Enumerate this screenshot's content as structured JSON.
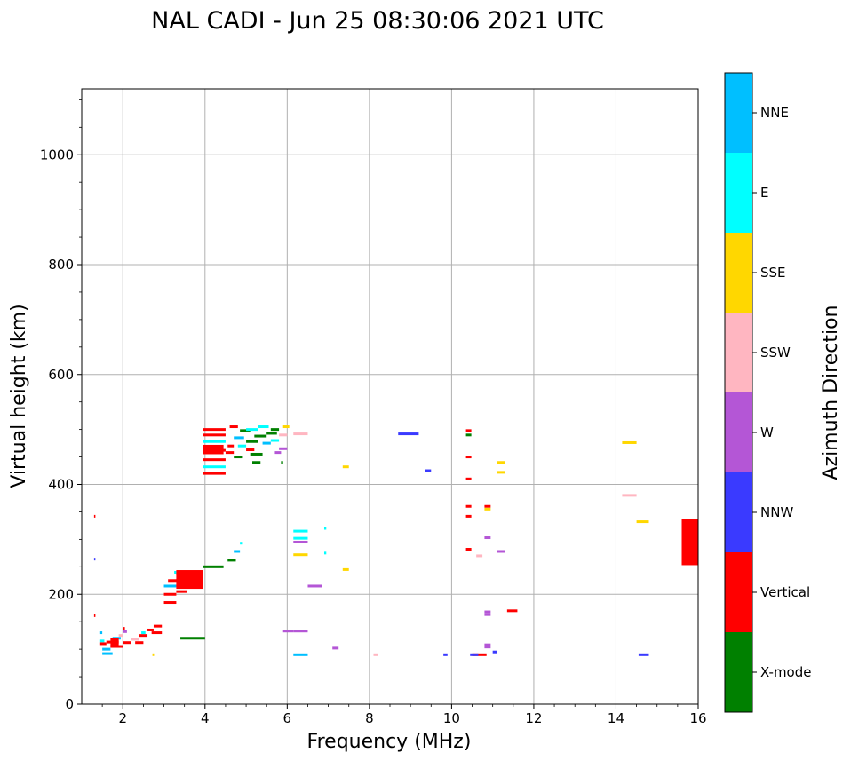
{
  "chart_data": {
    "type": "scatter",
    "title": "NAL CADI - Jun 25 08:30:06 2021 UTC",
    "xlabel": "Frequency (MHz)",
    "ylabel": "Virtual height (km)",
    "xlim": [
      1,
      16
    ],
    "ylim": [
      0,
      1120
    ],
    "grid": true,
    "x_ticks": [
      2,
      4,
      6,
      8,
      10,
      12,
      14,
      16
    ],
    "x_tick_labels": [
      "2",
      "4",
      "6",
      "8",
      "10",
      "12",
      "14",
      "16"
    ],
    "y_ticks": [
      0,
      200,
      400,
      600,
      800,
      1000
    ],
    "y_tick_labels": [
      "0",
      "200",
      "400",
      "600",
      "800",
      "1000"
    ],
    "colorbar": {
      "label": "Azimuth Direction",
      "categories": [
        "X-mode",
        "Vertical",
        "NNW",
        "W",
        "SSW",
        "SSE",
        "E",
        "NNE"
      ],
      "colors": [
        "#008000",
        "#ff0000",
        "#3a3aff",
        "#b456d6",
        "#ffb6c1",
        "#ffd700",
        "#00ffff",
        "#00bfff"
      ]
    },
    "points": [
      {
        "f0": 1.3,
        "f1": 1.33,
        "h": 342,
        "c": "Vertical"
      },
      {
        "f0": 1.3,
        "f1": 1.33,
        "h": 264,
        "c": "NNW"
      },
      {
        "f0": 1.3,
        "f1": 1.33,
        "h": 161,
        "c": "Vertical"
      },
      {
        "f0": 1.45,
        "f1": 1.5,
        "h": 130,
        "c": "NNE"
      },
      {
        "f0": 1.45,
        "f1": 1.55,
        "h": 115,
        "c": "E"
      },
      {
        "f0": 1.45,
        "f1": 1.6,
        "h": 110,
        "c": "Vertical"
      },
      {
        "f0": 1.5,
        "f1": 1.7,
        "h": 100,
        "c": "NNE"
      },
      {
        "f0": 1.5,
        "f1": 1.75,
        "h": 92,
        "c": "NNE"
      },
      {
        "f0": 1.6,
        "f1": 1.9,
        "h": 113,
        "c": "Vertical"
      },
      {
        "f0": 1.7,
        "f1": 2.0,
        "h": 105,
        "c": "Vertical"
      },
      {
        "f0": 1.75,
        "f1": 1.95,
        "h": 120,
        "c": "NNE"
      },
      {
        "f0": 1.9,
        "f1": 2.0,
        "h": 125,
        "c": "SSW"
      },
      {
        "f0": 2.0,
        "f1": 2.2,
        "h": 112,
        "c": "Vertical"
      },
      {
        "f0": 2.0,
        "f1": 2.1,
        "h": 132,
        "c": "W"
      },
      {
        "f0": 2.0,
        "f1": 2.05,
        "h": 138,
        "c": "Vertical"
      },
      {
        "f0": 2.2,
        "f1": 2.4,
        "h": 118,
        "c": "SSW"
      },
      {
        "f0": 2.3,
        "f1": 2.5,
        "h": 112,
        "c": "Vertical"
      },
      {
        "f0": 2.4,
        "f1": 2.6,
        "h": 125,
        "c": "Vertical"
      },
      {
        "f0": 2.45,
        "f1": 2.55,
        "h": 130,
        "c": "E"
      },
      {
        "f0": 2.6,
        "f1": 2.75,
        "h": 135,
        "c": "Vertical"
      },
      {
        "f0": 2.7,
        "f1": 2.95,
        "h": 130,
        "c": "Vertical"
      },
      {
        "f0": 2.75,
        "f1": 2.95,
        "h": 142,
        "c": "Vertical"
      },
      {
        "f0": 2.72,
        "f1": 2.76,
        "h": 90,
        "c": "SSE"
      },
      {
        "f0": 3.0,
        "f1": 3.3,
        "h": 185,
        "c": "Vertical"
      },
      {
        "f0": 3.0,
        "f1": 3.3,
        "h": 200,
        "c": "Vertical"
      },
      {
        "f0": 3.0,
        "f1": 3.3,
        "h": 215,
        "c": "NNE"
      },
      {
        "f0": 3.1,
        "f1": 3.4,
        "h": 225,
        "c": "Vertical"
      },
      {
        "f0": 3.3,
        "f1": 3.55,
        "h": 205,
        "c": "Vertical"
      },
      {
        "f0": 3.3,
        "f1": 3.9,
        "h": 215,
        "c": "Vertical"
      },
      {
        "f0": 3.3,
        "f1": 3.9,
        "h": 225,
        "c": "Vertical"
      },
      {
        "f0": 3.3,
        "f1": 3.9,
        "h": 238,
        "c": "Vertical"
      },
      {
        "f0": 3.25,
        "f1": 3.3,
        "h": 240,
        "c": "E"
      },
      {
        "f0": 3.4,
        "f1": 4.0,
        "h": 120,
        "c": "X-mode"
      },
      {
        "f0": 3.95,
        "f1": 4.45,
        "h": 250,
        "c": "X-mode"
      },
      {
        "f0": 4.55,
        "f1": 4.75,
        "h": 262,
        "c": "X-mode"
      },
      {
        "f0": 4.7,
        "f1": 4.85,
        "h": 278,
        "c": "NNE"
      },
      {
        "f0": 4.85,
        "f1": 4.9,
        "h": 293,
        "c": "E"
      },
      {
        "f0": 3.95,
        "f1": 4.5,
        "h": 420,
        "c": "Vertical"
      },
      {
        "f0": 3.95,
        "f1": 4.5,
        "h": 432,
        "c": "E"
      },
      {
        "f0": 3.95,
        "f1": 4.5,
        "h": 445,
        "c": "Vertical"
      },
      {
        "f0": 3.95,
        "f1": 4.5,
        "h": 462,
        "c": "Vertical"
      },
      {
        "f0": 3.95,
        "f1": 4.5,
        "h": 478,
        "c": "E"
      },
      {
        "f0": 3.95,
        "f1": 4.5,
        "h": 490,
        "c": "Vertical"
      },
      {
        "f0": 3.95,
        "f1": 4.5,
        "h": 500,
        "c": "Vertical"
      },
      {
        "f0": 4.5,
        "f1": 4.7,
        "h": 458,
        "c": "Vertical"
      },
      {
        "f0": 4.55,
        "f1": 4.7,
        "h": 470,
        "c": "Vertical"
      },
      {
        "f0": 4.6,
        "f1": 4.8,
        "h": 505,
        "c": "Vertical"
      },
      {
        "f0": 4.7,
        "f1": 4.9,
        "h": 450,
        "c": "X-mode"
      },
      {
        "f0": 4.7,
        "f1": 4.95,
        "h": 485,
        "c": "NNE"
      },
      {
        "f0": 4.8,
        "f1": 5.0,
        "h": 470,
        "c": "E"
      },
      {
        "f0": 4.85,
        "f1": 5.1,
        "h": 498,
        "c": "X-mode"
      },
      {
        "f0": 5.0,
        "f1": 5.3,
        "h": 478,
        "c": "X-mode"
      },
      {
        "f0": 5.0,
        "f1": 5.2,
        "h": 463,
        "c": "Vertical"
      },
      {
        "f0": 5.0,
        "f1": 5.3,
        "h": 500,
        "c": "E"
      },
      {
        "f0": 5.1,
        "f1": 5.4,
        "h": 455,
        "c": "X-mode"
      },
      {
        "f0": 5.15,
        "f1": 5.35,
        "h": 440,
        "c": "X-mode"
      },
      {
        "f0": 5.2,
        "f1": 5.5,
        "h": 488,
        "c": "X-mode"
      },
      {
        "f0": 5.3,
        "f1": 5.55,
        "h": 505,
        "c": "E"
      },
      {
        "f0": 5.4,
        "f1": 5.6,
        "h": 475,
        "c": "NNE"
      },
      {
        "f0": 5.5,
        "f1": 5.75,
        "h": 493,
        "c": "X-mode"
      },
      {
        "f0": 5.6,
        "f1": 5.8,
        "h": 500,
        "c": "X-mode"
      },
      {
        "f0": 5.6,
        "f1": 5.8,
        "h": 480,
        "c": "E"
      },
      {
        "f0": 5.7,
        "f1": 5.85,
        "h": 458,
        "c": "W"
      },
      {
        "f0": 5.8,
        "f1": 6.0,
        "h": 490,
        "c": "SSW"
      },
      {
        "f0": 5.8,
        "f1": 6.0,
        "h": 465,
        "c": "W"
      },
      {
        "f0": 5.85,
        "f1": 5.9,
        "h": 440,
        "c": "X-mode"
      },
      {
        "f0": 5.9,
        "f1": 6.05,
        "h": 505,
        "c": "SSE"
      },
      {
        "f0": 6.15,
        "f1": 6.5,
        "h": 492,
        "c": "SSW"
      },
      {
        "f0": 7.35,
        "f1": 7.5,
        "h": 432,
        "c": "SSE"
      },
      {
        "f0": 6.15,
        "f1": 6.5,
        "h": 315,
        "c": "E"
      },
      {
        "f0": 6.15,
        "f1": 6.5,
        "h": 295,
        "c": "W"
      },
      {
        "f0": 6.15,
        "f1": 6.5,
        "h": 272,
        "c": "SSE"
      },
      {
        "f0": 6.15,
        "f1": 6.5,
        "h": 302,
        "c": "E"
      },
      {
        "f0": 6.9,
        "f1": 6.95,
        "h": 320,
        "c": "E"
      },
      {
        "f0": 6.9,
        "f1": 6.95,
        "h": 275,
        "c": "E"
      },
      {
        "f0": 6.5,
        "f1": 6.85,
        "h": 215,
        "c": "W"
      },
      {
        "f0": 7.35,
        "f1": 7.5,
        "h": 245,
        "c": "SSE"
      },
      {
        "f0": 5.9,
        "f1": 6.15,
        "h": 133,
        "c": "W"
      },
      {
        "f0": 6.15,
        "f1": 6.5,
        "h": 133,
        "c": "W"
      },
      {
        "f0": 6.15,
        "f1": 6.5,
        "h": 90,
        "c": "NNE"
      },
      {
        "f0": 7.1,
        "f1": 7.25,
        "h": 102,
        "c": "W"
      },
      {
        "f0": 8.1,
        "f1": 8.2,
        "h": 90,
        "c": "SSW"
      },
      {
        "f0": 8.7,
        "f1": 9.2,
        "h": 492,
        "c": "NNW"
      },
      {
        "f0": 9.35,
        "f1": 9.5,
        "h": 425,
        "c": "NNW"
      },
      {
        "f0": 9.8,
        "f1": 9.9,
        "h": 90,
        "c": "NNW"
      },
      {
        "f0": 10.35,
        "f1": 10.48,
        "h": 498,
        "c": "Vertical"
      },
      {
        "f0": 10.35,
        "f1": 10.48,
        "h": 490,
        "c": "X-mode"
      },
      {
        "f0": 10.35,
        "f1": 10.48,
        "h": 450,
        "c": "Vertical"
      },
      {
        "f0": 10.35,
        "f1": 10.48,
        "h": 410,
        "c": "Vertical"
      },
      {
        "f0": 10.35,
        "f1": 10.48,
        "h": 360,
        "c": "Vertical"
      },
      {
        "f0": 10.35,
        "f1": 10.48,
        "h": 342,
        "c": "Vertical"
      },
      {
        "f0": 10.35,
        "f1": 10.48,
        "h": 282,
        "c": "Vertical"
      },
      {
        "f0": 10.5,
        "f1": 10.85,
        "h": 90,
        "c": "Vertical"
      },
      {
        "f0": 10.45,
        "f1": 10.65,
        "h": 90,
        "c": "NNW"
      },
      {
        "f0": 10.6,
        "f1": 10.75,
        "h": 270,
        "c": "SSW"
      },
      {
        "f0": 10.8,
        "f1": 10.95,
        "h": 360,
        "c": "Vertical"
      },
      {
        "f0": 10.8,
        "f1": 10.95,
        "h": 355,
        "c": "SSE"
      },
      {
        "f0": 10.8,
        "f1": 10.95,
        "h": 303,
        "c": "W"
      },
      {
        "f0": 10.8,
        "f1": 10.95,
        "h": 168,
        "c": "W"
      },
      {
        "f0": 10.8,
        "f1": 10.95,
        "h": 163,
        "c": "W"
      },
      {
        "f0": 10.8,
        "f1": 10.95,
        "h": 108,
        "c": "W"
      },
      {
        "f0": 10.8,
        "f1": 10.95,
        "h": 104,
        "c": "W"
      },
      {
        "f0": 11.0,
        "f1": 11.1,
        "h": 95,
        "c": "NNW"
      },
      {
        "f0": 11.1,
        "f1": 11.3,
        "h": 440,
        "c": "SSE"
      },
      {
        "f0": 11.1,
        "f1": 11.3,
        "h": 422,
        "c": "SSE"
      },
      {
        "f0": 11.1,
        "f1": 11.3,
        "h": 278,
        "c": "W"
      },
      {
        "f0": 11.35,
        "f1": 11.6,
        "h": 170,
        "c": "Vertical"
      },
      {
        "f0": 14.15,
        "f1": 14.5,
        "h": 476,
        "c": "SSE"
      },
      {
        "f0": 14.15,
        "f1": 14.5,
        "h": 380,
        "c": "SSW"
      },
      {
        "f0": 14.5,
        "f1": 14.8,
        "h": 332,
        "c": "SSE"
      },
      {
        "f0": 14.55,
        "f1": 14.8,
        "h": 90,
        "c": "NNW"
      }
    ],
    "blocks": [
      {
        "f0": 15.6,
        "f1": 16.0,
        "h0": 253,
        "h1": 337,
        "c": "Vertical"
      },
      {
        "f0": 3.3,
        "f1": 3.95,
        "h0": 210,
        "h1": 244,
        "c": "Vertical"
      },
      {
        "f0": 3.95,
        "f1": 4.45,
        "h0": 455,
        "h1": 472,
        "c": "Vertical"
      },
      {
        "f0": 1.7,
        "f1": 1.9,
        "h0": 104,
        "h1": 120,
        "c": "Vertical"
      }
    ]
  }
}
